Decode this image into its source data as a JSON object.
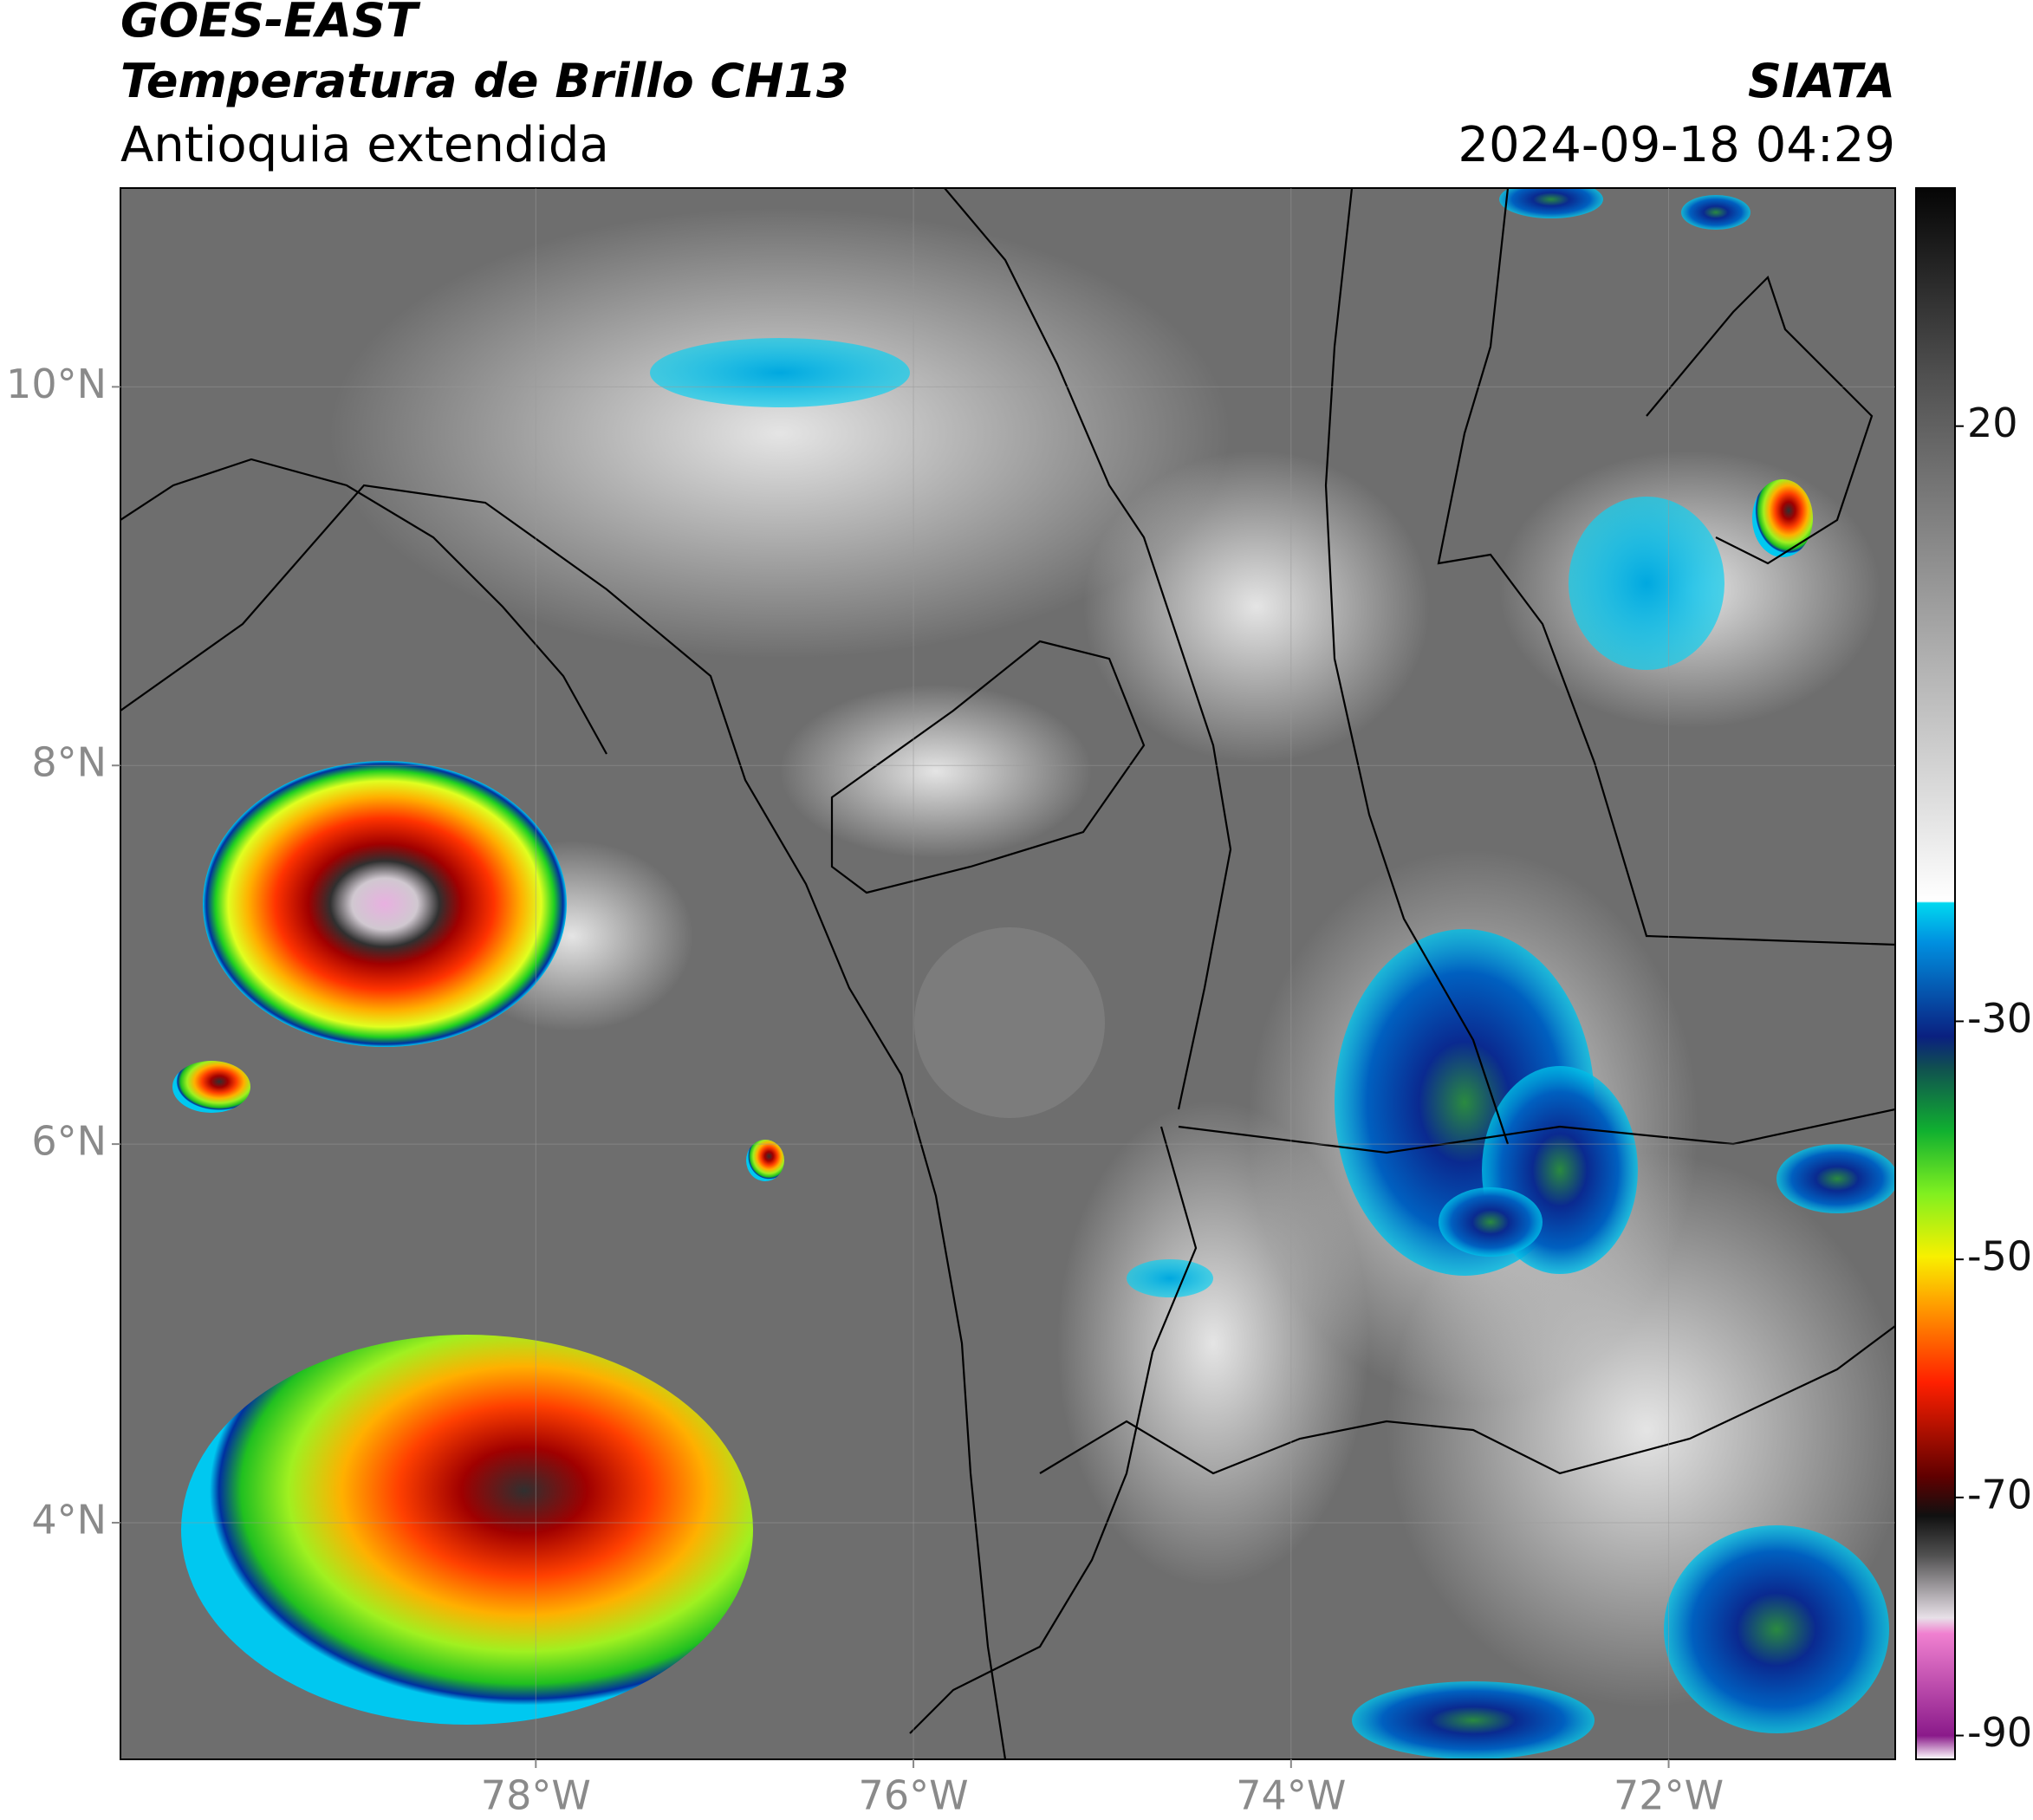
{
  "header": {
    "title": "GOES-EAST",
    "subtitle": "Temperatura de Brillo CH13",
    "region": "Antioquia extendida",
    "source": "SIATA",
    "datetime": "2024-09-18 04:29"
  },
  "map": {
    "xlim": [
      -80.2,
      -70.8
    ],
    "ylim": [
      2.75,
      11.05
    ],
    "xticks": [
      {
        "value": -78,
        "label": "78°W"
      },
      {
        "value": -76,
        "label": "76°W"
      },
      {
        "value": -74,
        "label": "74°W"
      },
      {
        "value": -72,
        "label": "72°W"
      }
    ],
    "yticks": [
      {
        "value": 10,
        "label": "10°N"
      },
      {
        "value": 8,
        "label": "8°N"
      },
      {
        "value": 6,
        "label": "6°N"
      },
      {
        "value": 4,
        "label": "4°N"
      }
    ]
  },
  "colorbar": {
    "ylim": [
      -92,
      40
    ],
    "yticks": [
      20,
      -30,
      -50,
      -70,
      -90
    ]
  }
}
